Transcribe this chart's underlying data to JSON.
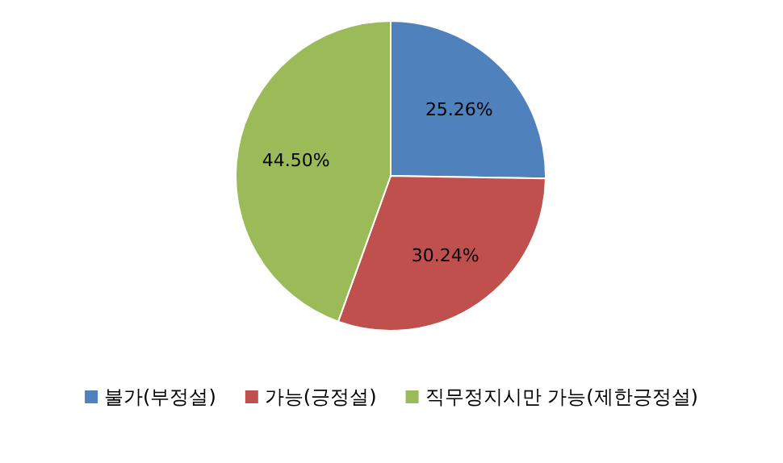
{
  "chart_data": {
    "type": "pie",
    "categories": [
      "불가(부정설)",
      "가능(긍정설)",
      "직무정지시만 가능(제한긍정설)"
    ],
    "values": [
      25.26,
      30.24,
      44.5
    ],
    "value_labels": [
      "25.26%",
      "30.24%",
      "44.50%"
    ],
    "colors": [
      "#4f81bd",
      "#c0504d",
      "#9bbb59"
    ],
    "legend": "bottom"
  }
}
